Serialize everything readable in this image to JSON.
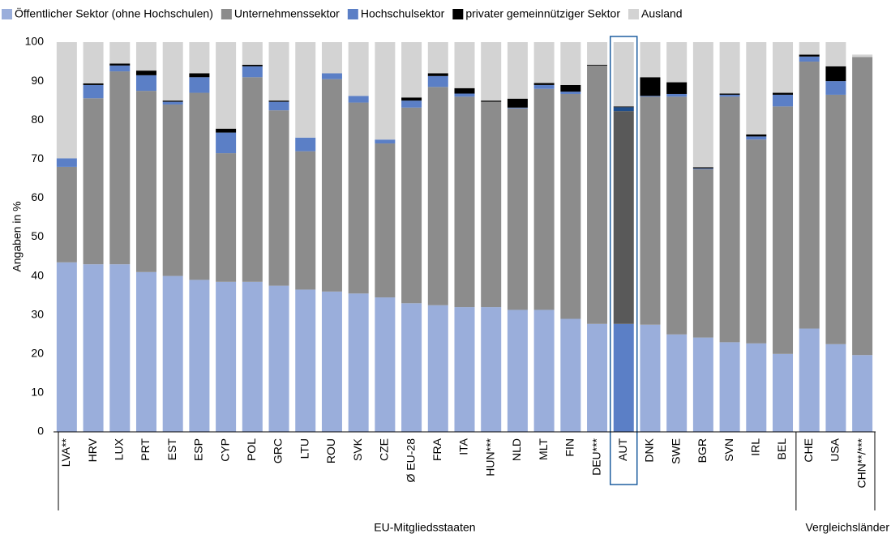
{
  "chart_data": {
    "type": "stacked_bar",
    "y_label": "Angaben in %",
    "categories": [
      "LVA**",
      "HRV",
      "LUX",
      "PRT",
      "EST",
      "ESP",
      "CYP",
      "POL",
      "GRC",
      "LTU",
      "ROU",
      "SVK",
      "CZE",
      "Ø EU-28",
      "FRA",
      "ITA",
      "HUN***",
      "NLD",
      "MLT",
      "FIN",
      "DEU***",
      "AUT",
      "DNK",
      "SWE",
      "BGR",
      "SVN",
      "IRL",
      "BEL",
      "CHE",
      "USA",
      "CHN**/***"
    ],
    "series": [
      {
        "name": "Öffentlicher Sektor (ohne Hochschulen)",
        "color": "#9aaedb",
        "highlight_color": "#5b7fc6",
        "values": [
          43.5,
          43,
          43,
          41,
          40,
          39,
          38.5,
          38.5,
          37.5,
          36.5,
          36,
          35.5,
          34.5,
          33,
          32.5,
          32,
          32,
          31.3,
          31.3,
          29,
          27.7,
          27.7,
          27.5,
          25,
          24.2,
          23,
          22.7,
          20,
          26.5,
          22.5,
          19.7
        ]
      },
      {
        "name": "Unternehmenssektor",
        "color": "#8c8c8c",
        "highlight_color": "#595959",
        "values": [
          24.5,
          42.6,
          49.5,
          46.5,
          44,
          48,
          33,
          52.5,
          45,
          35.5,
          54.5,
          49,
          39.5,
          50.2,
          56,
          54,
          52.7,
          51.7,
          56.7,
          57.7,
          66.3,
          54.6,
          58.5,
          61,
          43.2,
          63,
          52.3,
          63.5,
          68.5,
          64,
          76.5
        ]
      },
      {
        "name": "Hochschulsektor",
        "color": "#5b7fc6",
        "highlight_color": "#1f4e8c",
        "values": [
          2.2,
          3.4,
          1.5,
          4,
          0.7,
          4,
          5.3,
          2.8,
          2.2,
          3.5,
          1.5,
          1.7,
          1,
          1.8,
          2.8,
          0.8,
          0,
          0.2,
          1,
          0.6,
          0,
          1,
          0.2,
          0.7,
          0.2,
          0.5,
          0.8,
          3,
          1.3,
          3.5,
          0
        ]
      },
      {
        "name": "privater gemeinnütziger Sektor",
        "color": "#000000",
        "highlight_color": "#000000",
        "values": [
          0,
          0.4,
          0.5,
          1.2,
          0.3,
          1,
          1,
          0.4,
          0.3,
          0,
          0,
          0,
          0,
          0.8,
          0.7,
          1.4,
          0.3,
          2.3,
          0.5,
          1.7,
          0.2,
          0.2,
          4.8,
          3,
          0.3,
          0.3,
          0.5,
          0.5,
          0.5,
          3.8,
          0
        ]
      },
      {
        "name": "Ausland",
        "color": "#d3d3d3",
        "highlight_color": "#d3d3d3",
        "values": [
          29.8,
          10.6,
          5.5,
          7.3,
          15,
          8,
          22.2,
          5.8,
          15,
          24.5,
          8,
          13.8,
          25,
          14.2,
          8,
          11.8,
          15,
          14.5,
          10.5,
          11,
          5.8,
          16.5,
          9,
          10.3,
          32.1,
          13.2,
          23.7,
          13,
          3.2,
          6.2,
          0.6
        ]
      }
    ],
    "highlight": "AUT",
    "groups": [
      {
        "label": "EU-Mitgliedsstaaten",
        "count": 28
      },
      {
        "label": "Vergleichsländer",
        "count": 3
      }
    ],
    "ylim": [
      0,
      100
    ],
    "yticks": [
      0,
      10,
      20,
      30,
      40,
      50,
      60,
      70,
      80,
      90,
      100
    ],
    "grid": false
  }
}
